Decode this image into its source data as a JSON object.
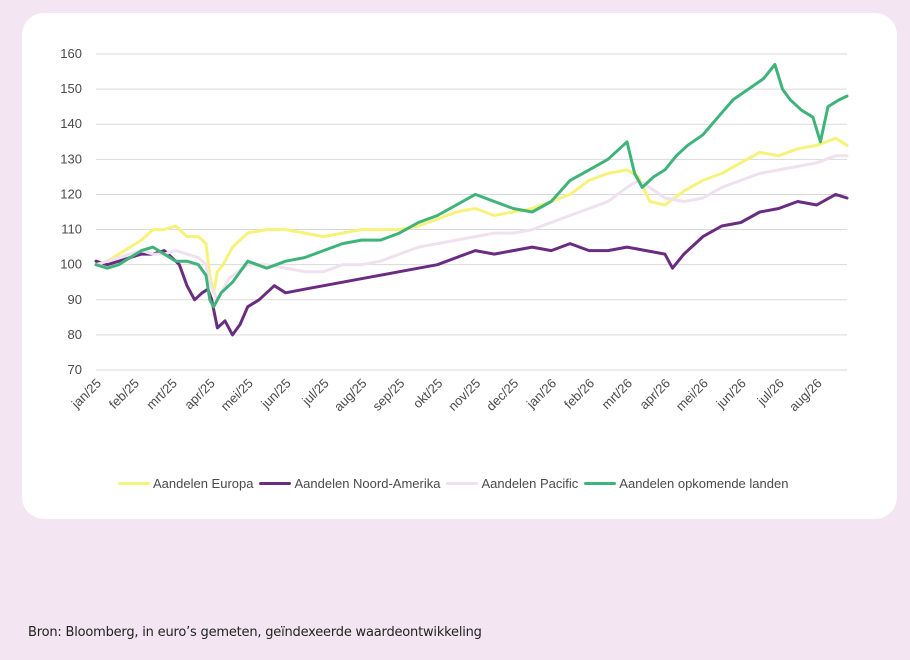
{
  "chart_data": {
    "type": "line",
    "title": "",
    "xlabel": "",
    "ylabel": "",
    "ylim": [
      70,
      160
    ],
    "yticks": [
      70,
      80,
      90,
      100,
      110,
      120,
      130,
      140,
      150,
      160
    ],
    "x_tick_labels": [
      "jan/25",
      "feb/25",
      "mrt/25",
      "apr/25",
      "mei/25",
      "jun/25",
      "jul/25",
      "aug/25",
      "sep/25",
      "okt/25",
      "nov/25",
      "dec/25",
      "jan/26",
      "feb/26",
      "mrt/26",
      "apr/26",
      "mei/26",
      "jun/26",
      "jul/26",
      "aug/26"
    ],
    "x_range_months": [
      0,
      19.8
    ],
    "grid": "horizontal",
    "legend_position": "bottom",
    "series": [
      {
        "name": "Aandelen Europa",
        "color": "#f7f27a",
        "x": [
          0,
          0.3,
          0.6,
          0.9,
          1.2,
          1.5,
          1.8,
          2.1,
          2.4,
          2.7,
          2.9,
          3.0,
          3.1,
          3.2,
          3.35,
          3.6,
          4.0,
          4.5,
          5.0,
          5.5,
          6.0,
          6.5,
          7.0,
          7.5,
          8.0,
          8.5,
          9.0,
          9.5,
          10.0,
          10.5,
          11.0,
          11.5,
          12.0,
          12.5,
          13.0,
          13.5,
          14.0,
          14.3,
          14.6,
          15.0,
          15.5,
          16.0,
          16.5,
          17.0,
          17.5,
          18.0,
          18.5,
          19.0,
          19.5,
          19.8
        ],
        "values": [
          100,
          101,
          103,
          105,
          107,
          110,
          110,
          111,
          108,
          108,
          106,
          97,
          92,
          98,
          100,
          105,
          109,
          110,
          110,
          109,
          108,
          109,
          110,
          110,
          110,
          111,
          113,
          115,
          116,
          114,
          115,
          116,
          118,
          120,
          124,
          126,
          127,
          125,
          118,
          117,
          121,
          124,
          126,
          129,
          132,
          131,
          133,
          134,
          136,
          134
        ]
      },
      {
        "name": "Aandelen Noord-Amerika",
        "color": "#6a2c80",
        "x": [
          0,
          0.3,
          0.6,
          0.9,
          1.2,
          1.5,
          1.8,
          2.0,
          2.2,
          2.4,
          2.6,
          2.8,
          2.95,
          3.05,
          3.2,
          3.4,
          3.6,
          3.8,
          4.0,
          4.3,
          4.7,
          5.0,
          5.5,
          6.0,
          6.5,
          7.0,
          7.5,
          8.0,
          8.5,
          9.0,
          9.5,
          10.0,
          10.5,
          11.0,
          11.5,
          12.0,
          12.5,
          13.0,
          13.5,
          14.0,
          14.5,
          15.0,
          15.2,
          15.5,
          16.0,
          16.5,
          17.0,
          17.5,
          18.0,
          18.5,
          19.0,
          19.5,
          19.8
        ],
        "values": [
          101,
          100,
          101,
          102,
          103,
          103,
          104,
          102,
          100,
          94,
          90,
          92,
          93,
          90,
          82,
          84,
          80,
          83,
          88,
          90,
          94,
          92,
          93,
          94,
          95,
          96,
          97,
          98,
          99,
          100,
          102,
          104,
          103,
          104,
          105,
          104,
          106,
          104,
          104,
          105,
          104,
          103,
          99,
          103,
          108,
          111,
          112,
          115,
          116,
          118,
          117,
          120,
          119
        ]
      },
      {
        "name": "Aandelen Pacific",
        "color": "#f0e1ee",
        "x": [
          0,
          0.3,
          0.6,
          0.9,
          1.2,
          1.5,
          1.8,
          2.1,
          2.4,
          2.7,
          2.9,
          3.0,
          3.2,
          3.5,
          4.0,
          4.5,
          5.0,
          5.5,
          6.0,
          6.5,
          7.0,
          7.5,
          8.0,
          8.5,
          9.0,
          9.5,
          10.0,
          10.5,
          11.0,
          11.5,
          12.0,
          12.5,
          13.0,
          13.5,
          14.0,
          14.3,
          14.6,
          15.0,
          15.5,
          16.0,
          16.5,
          17.0,
          17.5,
          18.0,
          18.5,
          19.0,
          19.5,
          19.8
        ],
        "values": [
          100,
          101,
          102,
          103,
          104,
          103,
          103,
          104,
          103,
          102,
          100,
          95,
          90,
          96,
          100,
          100,
          99,
          98,
          98,
          100,
          100,
          101,
          103,
          105,
          106,
          107,
          108,
          109,
          109,
          110,
          112,
          114,
          116,
          118,
          122,
          124,
          122,
          119,
          118,
          119,
          122,
          124,
          126,
          127,
          128,
          129,
          131,
          131
        ]
      },
      {
        "name": "Aandelen opkomende landen",
        "color": "#3fb47a",
        "x": [
          0,
          0.3,
          0.6,
          0.9,
          1.2,
          1.5,
          1.8,
          2.1,
          2.4,
          2.7,
          2.9,
          3.0,
          3.1,
          3.3,
          3.6,
          4.0,
          4.5,
          5.0,
          5.5,
          6.0,
          6.5,
          7.0,
          7.5,
          8.0,
          8.5,
          9.0,
          9.5,
          10.0,
          10.5,
          11.0,
          11.5,
          12.0,
          12.5,
          13.0,
          13.5,
          14.0,
          14.2,
          14.4,
          14.7,
          15.0,
          15.3,
          15.6,
          16.0,
          16.4,
          16.8,
          17.2,
          17.6,
          17.9,
          18.1,
          18.3,
          18.6,
          18.9,
          19.1,
          19.3,
          19.6,
          19.8
        ],
        "values": [
          100,
          99,
          100,
          102,
          104,
          105,
          103,
          101,
          101,
          100,
          97,
          90,
          88,
          92,
          95,
          101,
          99,
          101,
          102,
          104,
          106,
          107,
          107,
          109,
          112,
          114,
          117,
          120,
          118,
          116,
          115,
          118,
          124,
          127,
          130,
          135,
          126,
          122,
          125,
          127,
          131,
          134,
          137,
          142,
          147,
          150,
          153,
          157,
          150,
          147,
          144,
          142,
          135,
          145,
          147,
          148
        ]
      }
    ]
  },
  "legend": {
    "items": [
      {
        "label": "Aandelen Europa",
        "color": "#f7f27a"
      },
      {
        "label": "Aandelen Noord-Amerika",
        "color": "#6a2c80"
      },
      {
        "label": "Aandelen Pacific",
        "color": "#f0e1ee"
      },
      {
        "label": "Aandelen opkomende landen",
        "color": "#3fb47a"
      }
    ]
  },
  "source": "Bron:  Bloomberg, in euro’s gemeten, geïndexeerde waardeontwikkeling"
}
